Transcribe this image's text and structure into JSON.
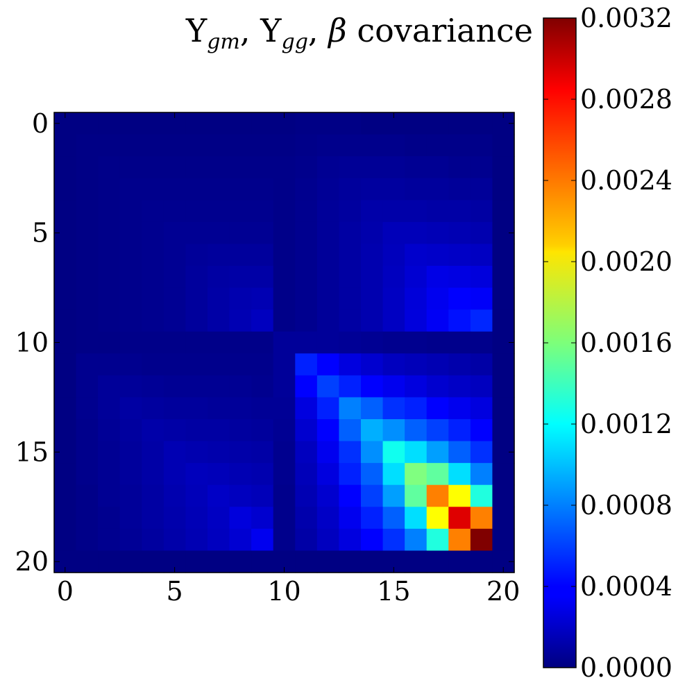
{
  "chart_data": {
    "type": "heatmap",
    "title": {
      "parts": [
        {
          "text": "Υ",
          "style": "normal"
        },
        {
          "text": "gm",
          "style": "italic-sub"
        },
        {
          "text": ", ",
          "style": "normal"
        },
        {
          "text": "Υ",
          "style": "normal"
        },
        {
          "text": "gg",
          "style": "italic-sub"
        },
        {
          "text": ", ",
          "style": "normal"
        },
        {
          "text": "β",
          "style": "italic"
        },
        {
          "text": " covariance",
          "style": "normal"
        }
      ]
    },
    "x_ticks": [
      "0",
      "5",
      "10",
      "15",
      "20"
    ],
    "y_ticks": [
      "0",
      "5",
      "10",
      "15",
      "20"
    ],
    "colorbar": {
      "min": 0.0,
      "max": 0.0032,
      "ticks": [
        "0.0000",
        "0.0004",
        "0.0008",
        "0.0012",
        "0.0016",
        "0.0020",
        "0.0024",
        "0.0028",
        "0.0032"
      ],
      "colormap": "jet"
    },
    "matrix_size": 21,
    "values": [
      [
        1e-05,
        1e-05,
        1e-05,
        1e-05,
        1e-05,
        1e-05,
        1e-05,
        1e-05,
        1e-05,
        1e-05,
        1e-05,
        2e-05,
        2e-05,
        2e-05,
        1e-05,
        1e-05,
        1e-05,
        1e-05,
        1e-05,
        1e-05,
        1e-05
      ],
      [
        1e-05,
        2e-05,
        2e-05,
        2e-05,
        2e-05,
        2e-05,
        2e-05,
        2e-05,
        2e-05,
        2e-05,
        2e-05,
        3e-05,
        4e-05,
        4e-05,
        4e-05,
        4e-05,
        3e-05,
        3e-05,
        3e-05,
        3e-05,
        1e-05
      ],
      [
        1e-05,
        2e-05,
        3e-05,
        3e-05,
        3e-05,
        3e-05,
        3e-05,
        3e-05,
        3e-05,
        3e-05,
        3e-05,
        4e-05,
        6e-05,
        7e-05,
        7e-05,
        7e-05,
        6e-05,
        6e-05,
        5e-05,
        5e-05,
        1e-05
      ],
      [
        1e-05,
        2e-05,
        3e-05,
        4e-05,
        4e-05,
        4e-05,
        4e-05,
        4e-05,
        4e-05,
        4e-05,
        3e-05,
        5e-05,
        7e-05,
        9e-05,
        0.0001,
        0.0001,
        9e-05,
        9e-05,
        8e-05,
        8e-05,
        1e-05
      ],
      [
        1e-05,
        2e-05,
        3e-05,
        4e-05,
        5e-05,
        5e-05,
        5e-05,
        5e-05,
        5e-05,
        5e-05,
        3e-05,
        5e-05,
        8e-05,
        0.0001,
        0.00013,
        0.00013,
        0.00013,
        0.00012,
        0.00012,
        0.00011,
        1e-05
      ],
      [
        1e-05,
        2e-05,
        3e-05,
        4e-05,
        5e-05,
        6e-05,
        6e-05,
        6e-05,
        6e-05,
        6e-05,
        3e-05,
        5e-05,
        8e-05,
        0.00011,
        0.00014,
        0.00018,
        0.00018,
        0.00017,
        0.00016,
        0.00015,
        1e-05
      ],
      [
        1e-05,
        2e-05,
        3e-05,
        4e-05,
        5e-05,
        6e-05,
        8e-05,
        9e-05,
        9e-05,
        9e-05,
        3e-05,
        5e-05,
        8e-05,
        0.00011,
        0.00015,
        0.00019,
        0.00024,
        0.00023,
        0.00022,
        0.00021,
        1e-05
      ],
      [
        1e-05,
        2e-05,
        3e-05,
        4e-05,
        5e-05,
        6e-05,
        9e-05,
        0.00011,
        0.00012,
        0.00012,
        3e-05,
        5e-05,
        8e-05,
        0.00011,
        0.00015,
        0.0002,
        0.00026,
        0.00032,
        0.00031,
        0.00029,
        1e-05
      ],
      [
        1e-05,
        2e-05,
        3e-05,
        4e-05,
        5e-05,
        6e-05,
        9e-05,
        0.00012,
        0.00015,
        0.00016,
        3e-05,
        5e-05,
        8e-05,
        0.00011,
        0.00015,
        0.00021,
        0.00028,
        0.00035,
        0.0004,
        0.00038,
        1e-05
      ],
      [
        1e-05,
        2e-05,
        3e-05,
        4e-05,
        5e-05,
        6e-05,
        9e-05,
        0.00012,
        0.00016,
        0.0002,
        3e-05,
        5e-05,
        8e-05,
        0.00011,
        0.00015,
        0.00021,
        0.00029,
        0.00037,
        0.00045,
        0.00052,
        1e-05
      ],
      [
        1e-05,
        2e-05,
        2e-05,
        3e-05,
        3e-05,
        3e-05,
        3e-05,
        3e-05,
        3e-05,
        3e-05,
        8e-05,
        8e-05,
        8e-05,
        7e-05,
        6e-05,
        5e-05,
        5e-05,
        4e-05,
        4e-05,
        4e-05,
        1e-05
      ],
      [
        1e-05,
        5e-05,
        5e-05,
        5e-05,
        4e-05,
        4e-05,
        4e-05,
        4e-05,
        4e-05,
        4e-05,
        8e-05,
        0.0005,
        0.0004,
        0.0003,
        0.00025,
        0.0002,
        0.00018,
        0.00016,
        0.00014,
        0.00012,
        1e-05
      ],
      [
        1e-05,
        5e-05,
        8e-05,
        8e-05,
        7e-05,
        6e-05,
        6e-05,
        6e-05,
        6e-05,
        5e-05,
        8e-05,
        0.0004,
        0.0006,
        0.0005,
        0.0004,
        0.00035,
        0.0003,
        0.00025,
        0.00022,
        0.0002,
        1e-05
      ],
      [
        1e-05,
        5e-05,
        8e-05,
        0.00011,
        0.0001,
        9e-05,
        9e-05,
        8e-05,
        8e-05,
        7e-05,
        7e-05,
        0.0003,
        0.0005,
        0.0008,
        0.0007,
        0.00055,
        0.0005,
        0.0004,
        0.00035,
        0.0003,
        1e-05
      ],
      [
        1e-05,
        4e-05,
        7e-05,
        0.0001,
        0.00013,
        0.00012,
        0.00011,
        0.00011,
        0.0001,
        9e-05,
        6e-05,
        0.00025,
        0.0004,
        0.0007,
        0.00095,
        0.00085,
        0.0007,
        0.0006,
        0.0005,
        0.0004,
        1e-05
      ],
      [
        1e-05,
        4e-05,
        6e-05,
        9e-05,
        0.00012,
        0.00016,
        0.00015,
        0.00014,
        0.00013,
        0.00012,
        5e-05,
        0.0002,
        0.00035,
        0.00055,
        0.00085,
        0.00125,
        0.0011,
        0.0009,
        0.0007,
        0.00055,
        1e-05
      ],
      [
        1e-05,
        4e-05,
        6e-05,
        9e-05,
        0.00012,
        0.00016,
        0.00019,
        0.00018,
        0.00016,
        0.00015,
        5e-05,
        0.00018,
        0.0003,
        0.0005,
        0.0007,
        0.0011,
        0.0016,
        0.0015,
        0.0011,
        0.0008,
        1e-05
      ],
      [
        1e-05,
        3e-05,
        6e-05,
        8e-05,
        0.00011,
        0.00015,
        0.00018,
        0.00022,
        0.0002,
        0.00018,
        4e-05,
        0.00016,
        0.00025,
        0.0004,
        0.0006,
        0.0009,
        0.0015,
        0.0024,
        0.002,
        0.0013,
        1e-05
      ],
      [
        1e-05,
        3e-05,
        5e-05,
        8e-05,
        0.00011,
        0.00014,
        0.00017,
        0.00021,
        0.00029,
        0.00025,
        4e-05,
        0.00014,
        0.00022,
        0.00035,
        0.0005,
        0.0007,
        0.0011,
        0.002,
        0.0029,
        0.0024,
        1e-05
      ],
      [
        1e-05,
        3e-05,
        5e-05,
        7e-05,
        0.0001,
        0.00013,
        0.00016,
        0.0002,
        0.00026,
        0.00035,
        4e-05,
        0.00012,
        0.0002,
        0.0003,
        0.0004,
        0.00055,
        0.0008,
        0.0013,
        0.0024,
        0.0032,
        1e-05
      ],
      [
        1e-05,
        1e-05,
        1e-05,
        1e-05,
        1e-05,
        1e-05,
        1e-05,
        1e-05,
        1e-05,
        1e-05,
        1e-05,
        1e-05,
        1e-05,
        1e-05,
        1e-05,
        1e-05,
        1e-05,
        1e-05,
        1e-05,
        1e-05,
        1e-05
      ]
    ]
  }
}
